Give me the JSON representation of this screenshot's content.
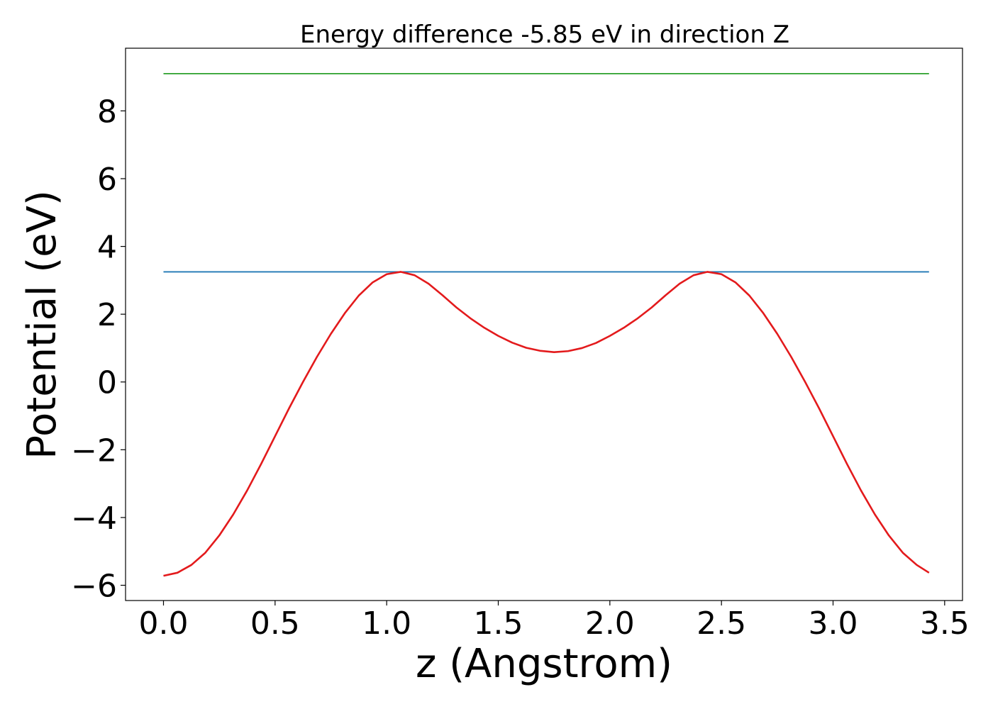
{
  "chart_data": {
    "type": "line",
    "title": "Energy difference -5.85 eV in direction Z",
    "xlabel": "z (Angstrom)",
    "ylabel": "Potential (eV)",
    "xlim": [
      -0.17,
      3.58
    ],
    "ylim": [
      -6.45,
      9.85
    ],
    "xticks": [
      0.0,
      0.5,
      1.0,
      1.5,
      2.0,
      2.5,
      3.0,
      3.5
    ],
    "xtick_labels": [
      "0.0",
      "0.5",
      "1.0",
      "1.5",
      "2.0",
      "2.5",
      "3.0",
      "3.5"
    ],
    "yticks": [
      -6,
      -4,
      -2,
      0,
      2,
      4,
      6,
      8
    ],
    "ytick_labels": [
      "−6",
      "−4",
      "−2",
      "0",
      "2",
      "4",
      "6",
      "8"
    ],
    "grid": false,
    "series": [
      {
        "color": "#2ca02c",
        "x": [
          0.0,
          3.43
        ],
        "y": [
          9.1,
          9.1
        ]
      },
      {
        "color": "#1f77b4",
        "x": [
          0.0,
          3.43
        ],
        "y": [
          3.25,
          3.25
        ]
      },
      {
        "color": "#e31a1c",
        "x": [
          0.0,
          0.0625,
          0.125,
          0.1875,
          0.25,
          0.3125,
          0.375,
          0.4375,
          0.5,
          0.5625,
          0.625,
          0.6875,
          0.75,
          0.8125,
          0.875,
          0.9375,
          1.0,
          1.0625,
          1.125,
          1.1875,
          1.25,
          1.3125,
          1.375,
          1.4375,
          1.5,
          1.5625,
          1.625,
          1.6875,
          1.75,
          1.8125,
          1.875,
          1.9375,
          2.0,
          2.0625,
          2.125,
          2.1875,
          2.25,
          2.3125,
          2.375,
          2.4375,
          2.5,
          2.5625,
          2.625,
          2.6875,
          2.75,
          2.8125,
          2.875,
          2.9375,
          3.0,
          3.0625,
          3.125,
          3.1875,
          3.25,
          3.3125,
          3.375,
          3.43
        ],
        "y": [
          -5.72,
          -5.63,
          -5.4,
          -5.04,
          -4.53,
          -3.91,
          -3.2,
          -2.42,
          -1.6,
          -0.78,
          0.0,
          0.74,
          1.42,
          2.03,
          2.55,
          2.94,
          3.18,
          3.25,
          3.15,
          2.9,
          2.56,
          2.2,
          1.88,
          1.6,
          1.36,
          1.16,
          1.01,
          0.92,
          0.88,
          0.91,
          1.0,
          1.15,
          1.36,
          1.6,
          1.88,
          2.2,
          2.56,
          2.9,
          3.15,
          3.25,
          3.18,
          2.94,
          2.55,
          2.03,
          1.42,
          0.74,
          0.0,
          -0.78,
          -1.6,
          -2.42,
          -3.2,
          -3.91,
          -4.53,
          -5.04,
          -5.4,
          -5.63
        ]
      }
    ]
  }
}
